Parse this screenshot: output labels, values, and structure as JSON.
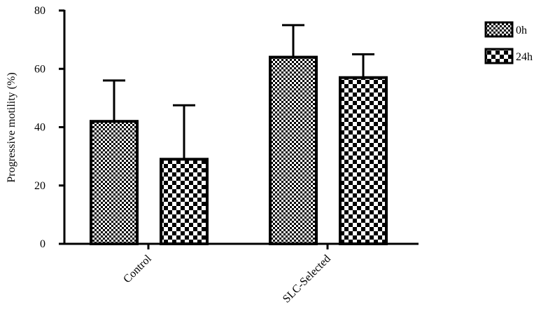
{
  "chart_data": {
    "type": "bar",
    "title": "",
    "xlabel": "",
    "ylabel": "Progressive motility (%)",
    "ylim": [
      0,
      80
    ],
    "yticks": [
      0,
      20,
      40,
      60,
      80
    ],
    "categories": [
      "Control",
      "SLC-Selected"
    ],
    "series": [
      {
        "name": "0h",
        "values": [
          42,
          64
        ],
        "errors": [
          14,
          11
        ],
        "pattern": "fine-checker"
      },
      {
        "name": "24h",
        "values": [
          29,
          57
        ],
        "errors": [
          18.5,
          8
        ],
        "pattern": "coarse-checker"
      }
    ],
    "grid": false,
    "legend": "top-right",
    "colors": {
      "bar_border": "#000000",
      "pattern_dark": "#000000",
      "pattern_light": "#ffffff"
    }
  }
}
